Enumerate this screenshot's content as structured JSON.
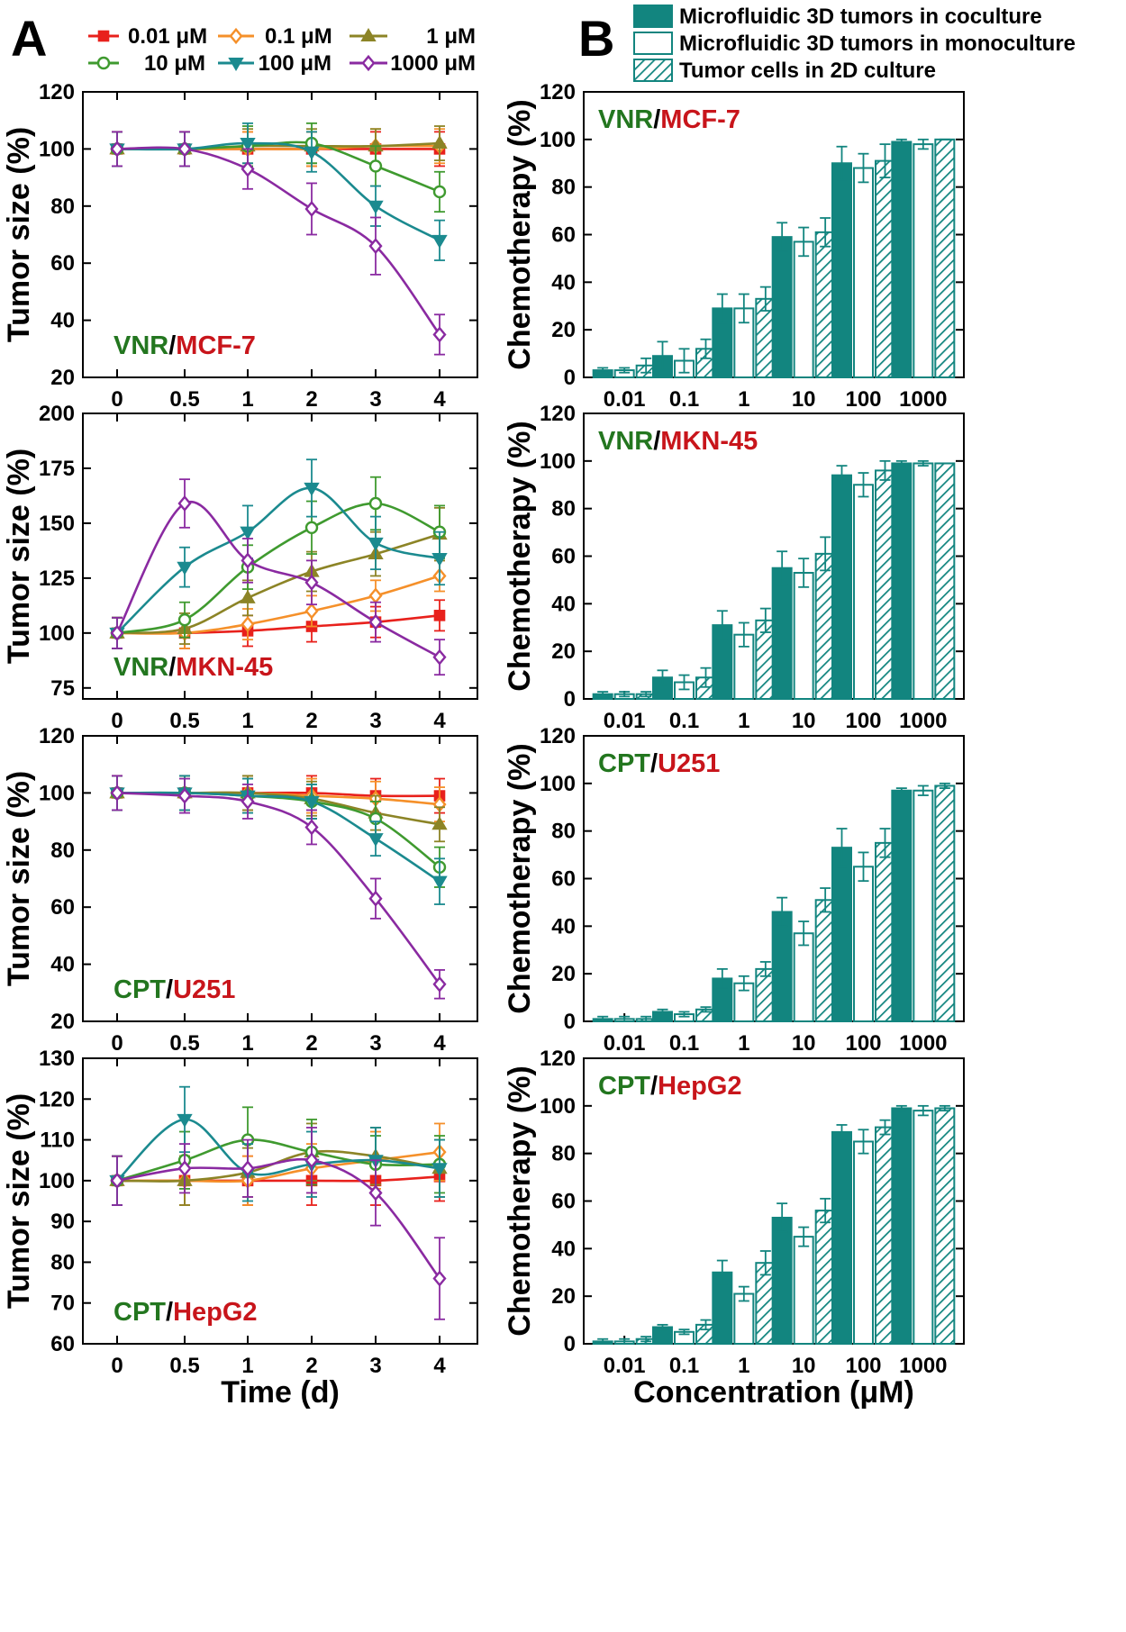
{
  "panel_labels": [
    "A",
    "B"
  ],
  "colors": {
    "teal": "#12857f",
    "drug_green": "#23761f",
    "cell_red": "#c8151b"
  },
  "legend_A": [
    {
      "label": "0.01 μM",
      "color": "#e8211c",
      "marker": "square",
      "filled": true
    },
    {
      "label": "0.1 μM",
      "color": "#f5902a",
      "marker": "diamond",
      "filled": false
    },
    {
      "label": "1 μM",
      "color": "#8c8426",
      "marker": "triangle-up",
      "filled": true
    },
    {
      "label": "10 μM",
      "color": "#3f9a2f",
      "marker": "circle",
      "filled": false
    },
    {
      "label": "100 μM",
      "color": "#1b8a8f",
      "marker": "triangle-down",
      "filled": true
    },
    {
      "label": "1000 μM",
      "color": "#8a2aa1",
      "marker": "diamond",
      "filled": false
    }
  ],
  "legend_B": [
    {
      "label": "Microfluidic 3D tumors in coculture",
      "style": "solid"
    },
    {
      "label": "Microfluidic 3D tumors in monoculture",
      "style": "open"
    },
    {
      "label": "Tumor cells in 2D culture",
      "style": "hatched"
    }
  ],
  "chart_data": [
    {
      "type": "line",
      "drug": "VNR",
      "cell": "MCF-7",
      "xlabel": "",
      "ylabel": "Tumor size (%)",
      "x": [
        0,
        0.5,
        1,
        2,
        3,
        4
      ],
      "x_tick_labels": [
        "0",
        "0.5",
        "1",
        "2",
        "3",
        "4"
      ],
      "ylim": [
        20,
        120
      ],
      "yticks": [
        20,
        40,
        60,
        80,
        100,
        120
      ],
      "series": [
        {
          "name": "0.01 μM",
          "values": [
            100,
            100,
            100,
            100,
            100,
            100
          ],
          "err": [
            6,
            6,
            6,
            6,
            6,
            6
          ]
        },
        {
          "name": "0.1 μM",
          "values": [
            100,
            100,
            100,
            100,
            101,
            101
          ],
          "err": [
            6,
            6,
            6,
            6,
            6,
            6
          ]
        },
        {
          "name": "1 μM",
          "values": [
            100,
            100,
            101,
            101,
            101,
            102
          ],
          "err": [
            6,
            6,
            6,
            6,
            6,
            6
          ]
        },
        {
          "name": "10 μM",
          "values": [
            100,
            100,
            101,
            102,
            94,
            85
          ],
          "err": [
            6,
            6,
            7,
            7,
            7,
            7
          ]
        },
        {
          "name": "100 μM",
          "values": [
            100,
            100,
            102,
            99,
            80,
            68
          ],
          "err": [
            6,
            6,
            7,
            7,
            7,
            7
          ]
        },
        {
          "name": "1000 μM",
          "values": [
            100,
            100,
            93,
            79,
            66,
            35
          ],
          "err": [
            6,
            6,
            7,
            9,
            10,
            7
          ]
        }
      ]
    },
    {
      "type": "line",
      "drug": "VNR",
      "cell": "MKN-45",
      "xlabel": "",
      "ylabel": "Tumor size (%)",
      "x": [
        0,
        0.5,
        1,
        2,
        3,
        4
      ],
      "x_tick_labels": [
        "0",
        "0.5",
        "1",
        "2",
        "3",
        "4"
      ],
      "ylim": [
        70,
        200
      ],
      "yticks": [
        75,
        100,
        125,
        150,
        175,
        200
      ],
      "series": [
        {
          "name": "0.01 μM",
          "values": [
            100,
            100,
            101,
            103,
            105,
            108
          ],
          "err": [
            7,
            7,
            7,
            7,
            7,
            7
          ]
        },
        {
          "name": "0.1 μM",
          "values": [
            100,
            100,
            104,
            110,
            117,
            126
          ],
          "err": [
            7,
            7,
            7,
            7,
            7,
            7
          ]
        },
        {
          "name": "1 μM",
          "values": [
            100,
            102,
            116,
            128,
            136,
            145
          ],
          "err": [
            7,
            7,
            8,
            9,
            10,
            12
          ]
        },
        {
          "name": "10 μM",
          "values": [
            100,
            106,
            130,
            148,
            159,
            146
          ],
          "err": [
            7,
            8,
            10,
            12,
            12,
            12
          ]
        },
        {
          "name": "100 μM",
          "values": [
            100,
            130,
            146,
            166,
            141,
            134
          ],
          "err": [
            7,
            9,
            12,
            13,
            12,
            12
          ]
        },
        {
          "name": "1000 μM",
          "values": [
            100,
            159,
            133,
            123,
            105,
            89
          ],
          "err": [
            7,
            11,
            10,
            10,
            9,
            8
          ]
        }
      ]
    },
    {
      "type": "line",
      "drug": "CPT",
      "cell": "U251",
      "xlabel": "",
      "ylabel": "Tumor size (%)",
      "x": [
        0,
        0.5,
        1,
        2,
        3,
        4
      ],
      "x_tick_labels": [
        "0",
        "0.5",
        "1",
        "2",
        "3",
        "4"
      ],
      "ylim": [
        20,
        120
      ],
      "yticks": [
        20,
        40,
        60,
        80,
        100,
        120
      ],
      "series": [
        {
          "name": "0.01 μM",
          "values": [
            100,
            100,
            100,
            100,
            99,
            99
          ],
          "err": [
            6,
            6,
            6,
            6,
            6,
            6
          ]
        },
        {
          "name": "0.1 μM",
          "values": [
            100,
            100,
            100,
            99,
            98,
            96
          ],
          "err": [
            6,
            6,
            6,
            6,
            6,
            6
          ]
        },
        {
          "name": "1 μM",
          "values": [
            100,
            100,
            100,
            98,
            93,
            89
          ],
          "err": [
            6,
            6,
            6,
            6,
            6,
            6
          ]
        },
        {
          "name": "10 μM",
          "values": [
            100,
            100,
            99,
            97,
            91,
            74
          ],
          "err": [
            6,
            6,
            6,
            6,
            6,
            7
          ]
        },
        {
          "name": "100 μM",
          "values": [
            100,
            100,
            99,
            97,
            84,
            69
          ],
          "err": [
            6,
            6,
            6,
            6,
            6,
            8
          ]
        },
        {
          "name": "1000 μM",
          "values": [
            100,
            99,
            97,
            88,
            63,
            33
          ],
          "err": [
            6,
            6,
            6,
            6,
            7,
            5
          ]
        }
      ]
    },
    {
      "type": "line",
      "drug": "CPT",
      "cell": "HepG2",
      "xlabel": "Time (d)",
      "ylabel": "Tumor size (%)",
      "x": [
        0,
        0.5,
        1,
        2,
        3,
        4
      ],
      "x_tick_labels": [
        "0",
        "0.5",
        "1",
        "2",
        "3",
        "4"
      ],
      "ylim": [
        60,
        130
      ],
      "yticks": [
        60,
        70,
        80,
        90,
        100,
        110,
        120,
        130
      ],
      "series": [
        {
          "name": "0.01 μM",
          "values": [
            100,
            100,
            100,
            100,
            100,
            101
          ],
          "err": [
            6,
            6,
            6,
            6,
            6,
            6
          ]
        },
        {
          "name": "0.1 μM",
          "values": [
            100,
            100,
            100,
            103,
            105,
            107
          ],
          "err": [
            6,
            6,
            6,
            6,
            7,
            7
          ]
        },
        {
          "name": "1 μM",
          "values": [
            100,
            100,
            102,
            107,
            106,
            103
          ],
          "err": [
            6,
            6,
            6,
            7,
            7,
            7
          ]
        },
        {
          "name": "10 μM",
          "values": [
            100,
            105,
            110,
            107,
            104,
            104
          ],
          "err": [
            6,
            7,
            8,
            8,
            7,
            7
          ]
        },
        {
          "name": "100 μM",
          "values": [
            100,
            115,
            102,
            104,
            105,
            103
          ],
          "err": [
            6,
            8,
            7,
            8,
            8,
            7
          ]
        },
        {
          "name": "1000 μM",
          "values": [
            100,
            103,
            103,
            105,
            97,
            76
          ],
          "err": [
            6,
            6,
            7,
            8,
            8,
            10
          ]
        }
      ]
    },
    {
      "type": "bar",
      "drug": "VNR",
      "cell": "MCF-7",
      "xlabel": "",
      "ylabel": "Chemotherapy (%)",
      "categories": [
        "0.01",
        "0.1",
        "1",
        "10",
        "100",
        "1000"
      ],
      "ylim": [
        0,
        120
      ],
      "yticks": [
        0,
        20,
        40,
        60,
        80,
        100,
        120
      ],
      "series": [
        {
          "name": "Microfluidic 3D tumors in coculture",
          "values": [
            3,
            9,
            29,
            59,
            90,
            99
          ],
          "err": [
            1,
            6,
            6,
            6,
            7,
            1
          ]
        },
        {
          "name": "Microfluidic 3D tumors in monoculture",
          "values": [
            3,
            7,
            29,
            57,
            88,
            98
          ],
          "err": [
            1,
            5,
            6,
            6,
            6,
            2
          ]
        },
        {
          "name": "Tumor cells in 2D culture",
          "values": [
            5,
            12,
            33,
            61,
            91,
            100
          ],
          "err": [
            3,
            4,
            5,
            6,
            7,
            0
          ]
        }
      ]
    },
    {
      "type": "bar",
      "drug": "VNR",
      "cell": "MKN-45",
      "xlabel": "",
      "ylabel": "Chemotherapy (%)",
      "categories": [
        "0.01",
        "0.1",
        "1",
        "10",
        "100",
        "1000"
      ],
      "ylim": [
        0,
        120
      ],
      "yticks": [
        0,
        20,
        40,
        60,
        80,
        100,
        120
      ],
      "series": [
        {
          "name": "Microfluidic 3D tumors in coculture",
          "values": [
            2,
            9,
            31,
            55,
            94,
            99
          ],
          "err": [
            1,
            3,
            6,
            7,
            4,
            1
          ]
        },
        {
          "name": "Microfluidic 3D tumors in monoculture",
          "values": [
            2,
            7,
            27,
            53,
            90,
            99
          ],
          "err": [
            1,
            3,
            5,
            6,
            5,
            1
          ]
        },
        {
          "name": "Tumor cells in 2D culture",
          "values": [
            2,
            9,
            33,
            61,
            96,
            99
          ],
          "err": [
            1,
            4,
            5,
            7,
            4,
            0
          ]
        }
      ]
    },
    {
      "type": "bar",
      "drug": "CPT",
      "cell": "U251",
      "xlabel": "",
      "ylabel": "Chemotherapy (%)",
      "categories": [
        "0.01",
        "0.1",
        "1",
        "10",
        "100",
        "1000"
      ],
      "ylim": [
        0,
        120
      ],
      "yticks": [
        0,
        20,
        40,
        60,
        80,
        100,
        120
      ],
      "series": [
        {
          "name": "Microfluidic 3D tumors in coculture",
          "values": [
            1,
            4,
            18,
            46,
            73,
            97
          ],
          "err": [
            1,
            1,
            4,
            6,
            8,
            1
          ]
        },
        {
          "name": "Microfluidic 3D tumors in monoculture",
          "values": [
            1,
            3,
            16,
            37,
            65,
            97
          ],
          "err": [
            1,
            1,
            3,
            5,
            6,
            2
          ]
        },
        {
          "name": "Tumor cells in 2D culture",
          "values": [
            1,
            5,
            22,
            51,
            75,
            99
          ],
          "err": [
            1,
            1,
            3,
            5,
            6,
            1
          ]
        }
      ]
    },
    {
      "type": "bar",
      "drug": "CPT",
      "cell": "HepG2",
      "xlabel": "Concentration (μM)",
      "ylabel": "Chemotherapy (%)",
      "categories": [
        "0.01",
        "0.1",
        "1",
        "10",
        "100",
        "1000"
      ],
      "ylim": [
        0,
        120
      ],
      "yticks": [
        0,
        20,
        40,
        60,
        80,
        100,
        120
      ],
      "series": [
        {
          "name": "Microfluidic 3D tumors in coculture",
          "values": [
            1,
            7,
            30,
            53,
            89,
            99
          ],
          "err": [
            1,
            1,
            5,
            6,
            3,
            1
          ]
        },
        {
          "name": "Microfluidic 3D tumors in monoculture",
          "values": [
            1,
            5,
            21,
            45,
            85,
            98
          ],
          "err": [
            1,
            1,
            3,
            4,
            5,
            2
          ]
        },
        {
          "name": "Tumor cells in 2D culture",
          "values": [
            2,
            8,
            34,
            56,
            91,
            99
          ],
          "err": [
            1,
            2,
            5,
            5,
            3,
            1
          ]
        }
      ]
    }
  ]
}
